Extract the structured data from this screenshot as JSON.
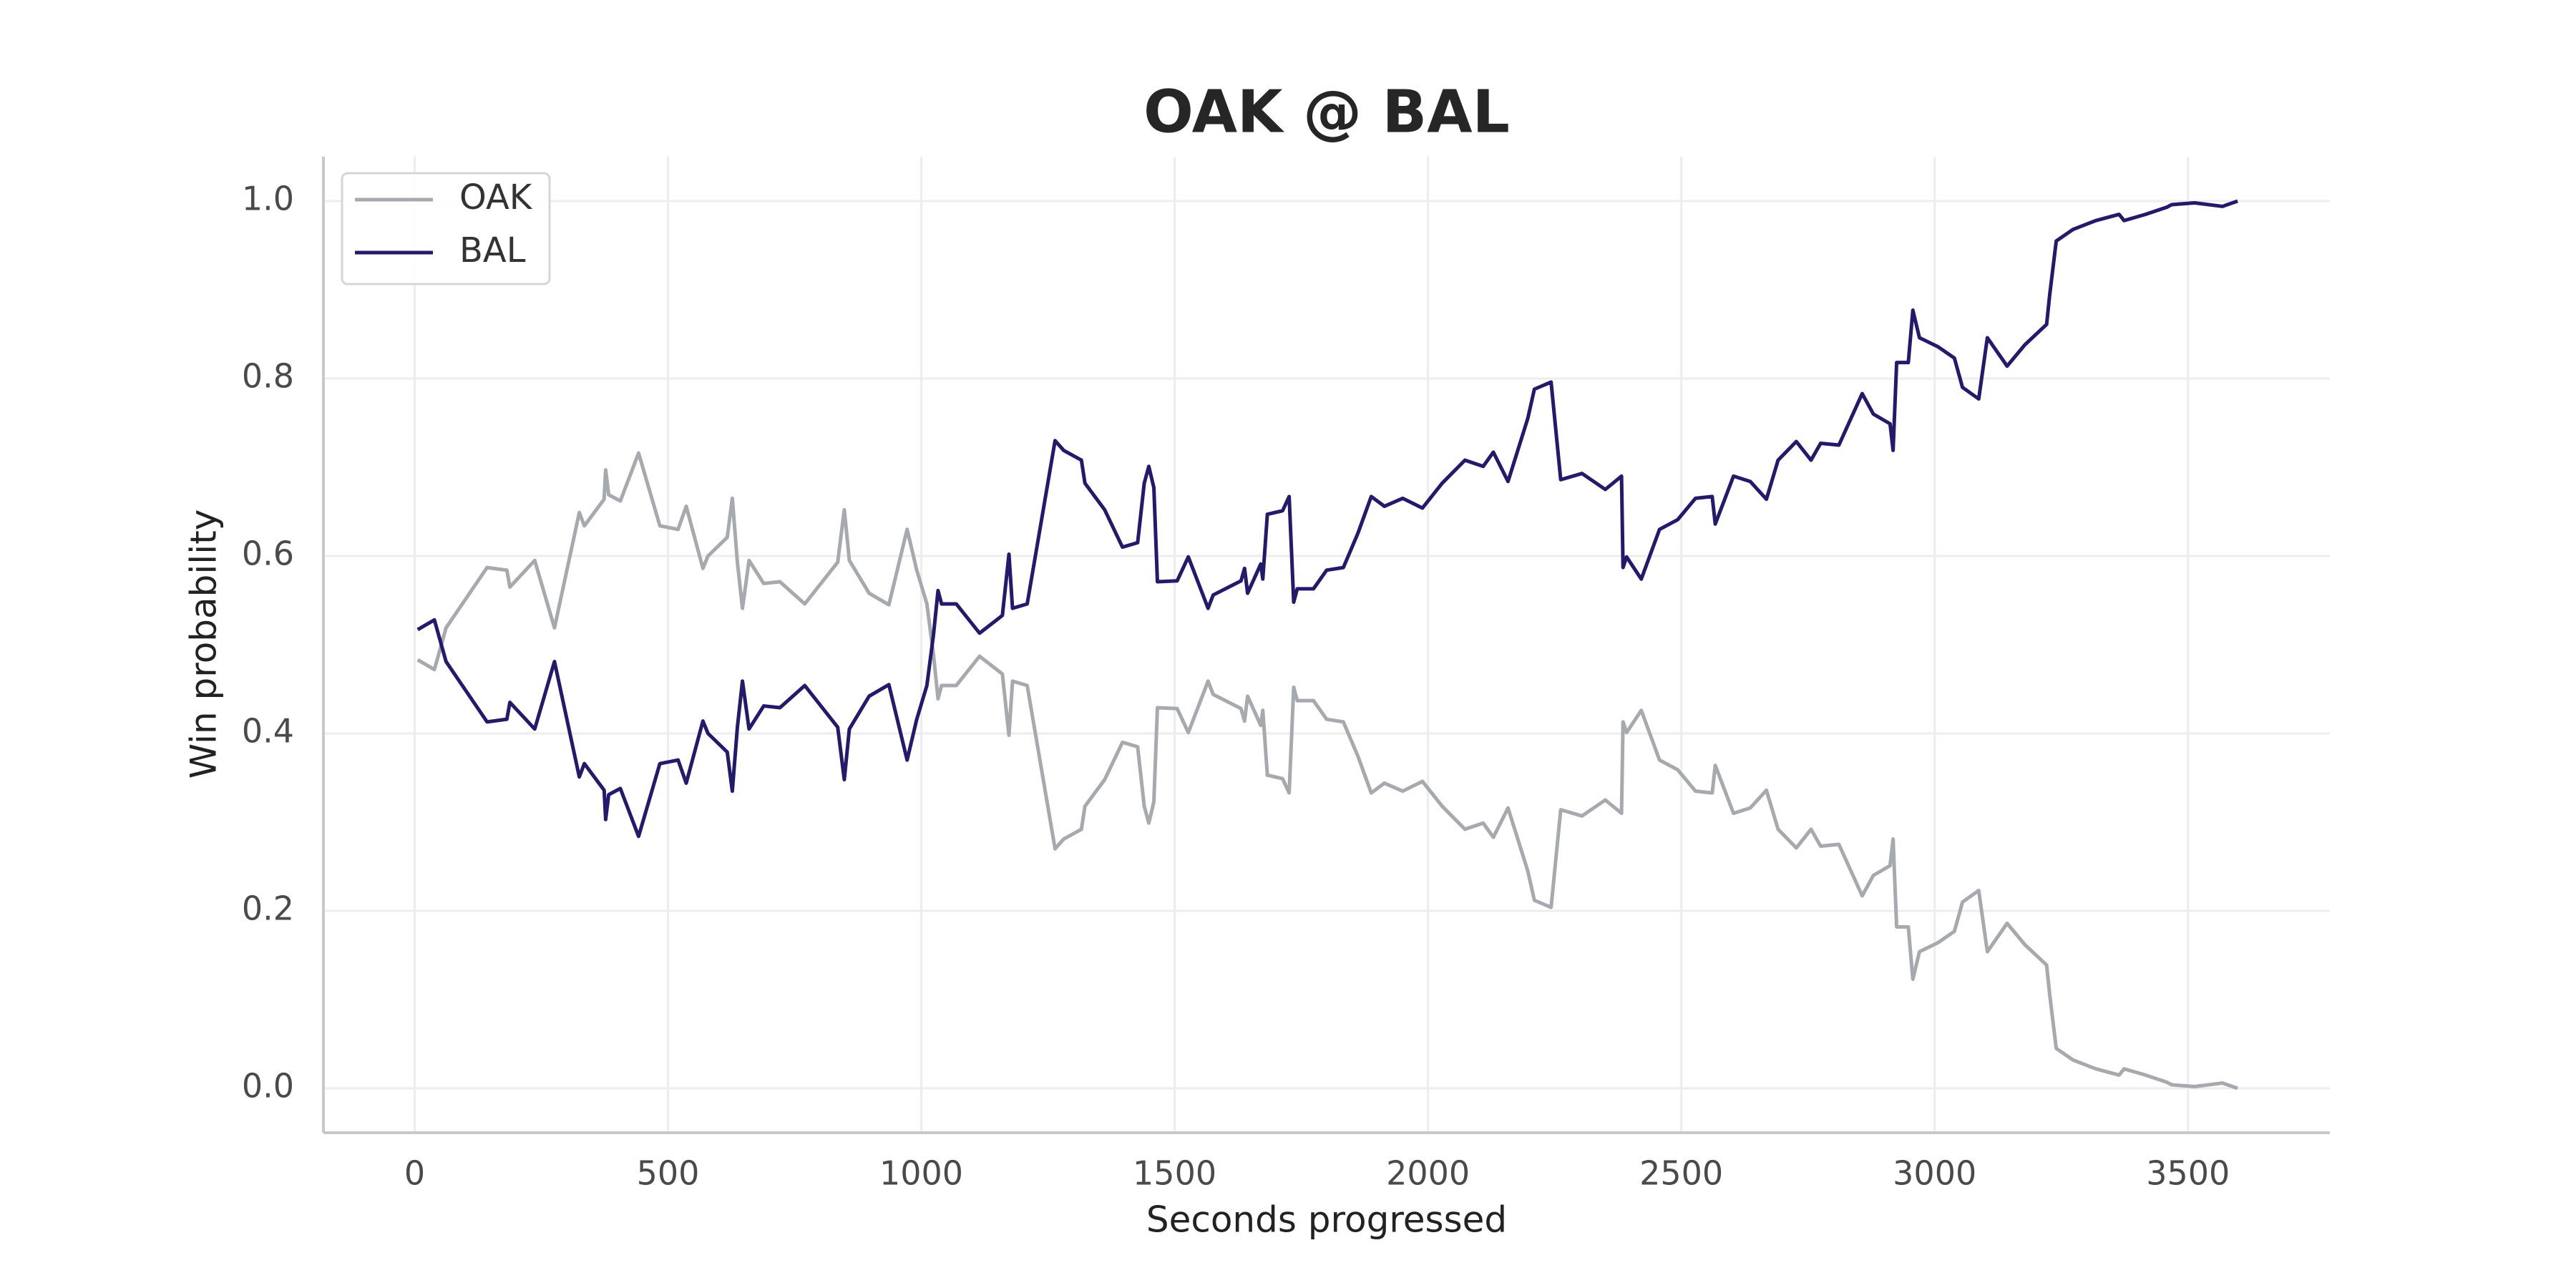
{
  "chart_data": {
    "type": "line",
    "title": "OAK @ BAL",
    "x_label": "Seconds progressed",
    "y_label": "Win probability",
    "x": [
      6,
      39,
      62,
      143,
      182,
      188,
      237,
      276,
      325,
      335,
      374,
      377,
      383,
      406,
      442,
      484,
      520,
      536,
      569,
      579,
      617,
      627,
      637,
      647,
      660,
      689,
      721,
      770,
      835,
      848,
      858,
      897,
      936,
      972,
      991,
      1011,
      1024,
      1033,
      1040,
      1069,
      1115,
      1160,
      1173,
      1180,
      1209,
      1264,
      1281,
      1316,
      1323,
      1362,
      1397,
      1427,
      1440,
      1449,
      1459,
      1466,
      1505,
      1527,
      1566,
      1576,
      1631,
      1638,
      1644,
      1670,
      1674,
      1683,
      1713,
      1726,
      1735,
      1742,
      1774,
      1800,
      1833,
      1862,
      1888,
      1914,
      1950,
      1989,
      2028,
      2073,
      2109,
      2129,
      2158,
      2197,
      2210,
      2243,
      2262,
      2304,
      2350,
      2382,
      2385,
      2392,
      2421,
      2457,
      2493,
      2528,
      2561,
      2567,
      2603,
      2636,
      2668,
      2691,
      2727,
      2756,
      2775,
      2811,
      2857,
      2879,
      2912,
      2918,
      2925,
      2948,
      2957,
      2970,
      3006,
      3039,
      3055,
      3087,
      3104,
      3143,
      3178,
      3221,
      3227,
      3240,
      3273,
      3318,
      3364,
      3374,
      3416,
      3458,
      3468,
      3513,
      3568,
      3598
    ],
    "series": [
      {
        "name": "OAK",
        "color": "#a6a9ad",
        "values": [
          0.483,
          0.472,
          0.519,
          0.587,
          0.584,
          0.565,
          0.595,
          0.519,
          0.649,
          0.634,
          0.664,
          0.697,
          0.669,
          0.662,
          0.716,
          0.634,
          0.63,
          0.656,
          0.586,
          0.6,
          0.621,
          0.665,
          0.593,
          0.541,
          0.595,
          0.569,
          0.571,
          0.546,
          0.593,
          0.652,
          0.595,
          0.558,
          0.545,
          0.63,
          0.584,
          0.546,
          0.489,
          0.439,
          0.454,
          0.454,
          0.487,
          0.467,
          0.398,
          0.459,
          0.454,
          0.27,
          0.281,
          0.292,
          0.318,
          0.348,
          0.39,
          0.385,
          0.318,
          0.299,
          0.323,
          0.429,
          0.428,
          0.401,
          0.459,
          0.444,
          0.428,
          0.414,
          0.442,
          0.409,
          0.426,
          0.353,
          0.349,
          0.333,
          0.452,
          0.437,
          0.437,
          0.416,
          0.413,
          0.374,
          0.333,
          0.344,
          0.335,
          0.346,
          0.318,
          0.292,
          0.299,
          0.283,
          0.316,
          0.245,
          0.212,
          0.204,
          0.314,
          0.307,
          0.325,
          0.31,
          0.413,
          0.401,
          0.426,
          0.37,
          0.359,
          0.335,
          0.333,
          0.364,
          0.31,
          0.316,
          0.336,
          0.292,
          0.271,
          0.292,
          0.273,
          0.275,
          0.217,
          0.24,
          0.251,
          0.281,
          0.182,
          0.182,
          0.123,
          0.154,
          0.164,
          0.177,
          0.21,
          0.223,
          0.154,
          0.186,
          0.162,
          0.139,
          0.106,
          0.045,
          0.032,
          0.022,
          0.015,
          0.022,
          0.015,
          0.007,
          0.004,
          0.002,
          0.006,
          0.0
        ]
      },
      {
        "name": "BAL",
        "color": "#231a6b",
        "values": [
          0.517,
          0.528,
          0.481,
          0.413,
          0.416,
          0.435,
          0.405,
          0.481,
          0.351,
          0.366,
          0.336,
          0.303,
          0.331,
          0.338,
          0.284,
          0.366,
          0.37,
          0.344,
          0.414,
          0.4,
          0.379,
          0.335,
          0.407,
          0.459,
          0.405,
          0.431,
          0.429,
          0.454,
          0.407,
          0.348,
          0.405,
          0.442,
          0.455,
          0.37,
          0.416,
          0.454,
          0.511,
          0.561,
          0.546,
          0.546,
          0.513,
          0.533,
          0.602,
          0.541,
          0.546,
          0.73,
          0.719,
          0.708,
          0.682,
          0.652,
          0.61,
          0.615,
          0.682,
          0.701,
          0.677,
          0.571,
          0.572,
          0.599,
          0.541,
          0.556,
          0.572,
          0.586,
          0.558,
          0.591,
          0.574,
          0.647,
          0.651,
          0.667,
          0.548,
          0.563,
          0.563,
          0.584,
          0.587,
          0.626,
          0.667,
          0.656,
          0.665,
          0.654,
          0.682,
          0.708,
          0.701,
          0.717,
          0.684,
          0.755,
          0.788,
          0.796,
          0.686,
          0.693,
          0.675,
          0.69,
          0.587,
          0.599,
          0.574,
          0.63,
          0.641,
          0.665,
          0.667,
          0.636,
          0.69,
          0.684,
          0.664,
          0.708,
          0.729,
          0.708,
          0.727,
          0.725,
          0.783,
          0.76,
          0.749,
          0.719,
          0.818,
          0.818,
          0.877,
          0.846,
          0.836,
          0.823,
          0.79,
          0.777,
          0.846,
          0.814,
          0.838,
          0.861,
          0.894,
          0.955,
          0.968,
          0.978,
          0.985,
          0.978,
          0.985,
          0.993,
          0.996,
          0.998,
          0.994,
          1.0
        ]
      }
    ],
    "xlim": [
      -180,
      3780
    ],
    "ylim": [
      -0.05,
      1.05
    ],
    "xticks": [
      0,
      500,
      1000,
      1500,
      2000,
      2500,
      3000,
      3500
    ],
    "yticks": [
      {
        "value": 0,
        "label": "0.0"
      },
      0.2,
      0.4,
      0.6,
      0.8,
      {
        "value": 1,
        "label": "1.0"
      }
    ],
    "grid": true,
    "legend": "upper left"
  }
}
